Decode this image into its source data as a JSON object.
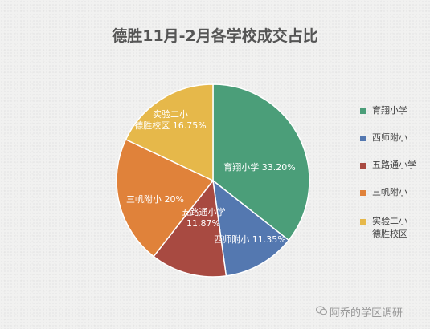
{
  "chart_data": {
    "type": "pie",
    "title": "德胜11月-2月各学校成交占比",
    "slices": [
      {
        "name": "育翔小学",
        "legend_label": "育翔小学",
        "label": "育翔小学 33.20%",
        "value": 33.2,
        "color": "#4b9e79"
      },
      {
        "name": "西师附小",
        "legend_label": "西师附小",
        "label": "西师附小 11.35%",
        "value": 11.35,
        "color": "#5478b0"
      },
      {
        "name": "五路通小学",
        "legend_label": "五路通小学",
        "label": "五路通小学\n11.87%",
        "value": 11.87,
        "color": "#a84a41"
      },
      {
        "name": "三帆附小",
        "legend_label": "三帆附小",
        "label": "三帆附小 20%",
        "value": 20,
        "color": "#e0823a"
      },
      {
        "name": "实验二小德胜校区",
        "legend_label": "实验二小\n德胜校区",
        "label": "实验二小\n德胜校区 16.75%",
        "value": 16.75,
        "color": "#e6b84a"
      }
    ],
    "legend_position": "right"
  },
  "watermark": "阿乔的学区调研"
}
